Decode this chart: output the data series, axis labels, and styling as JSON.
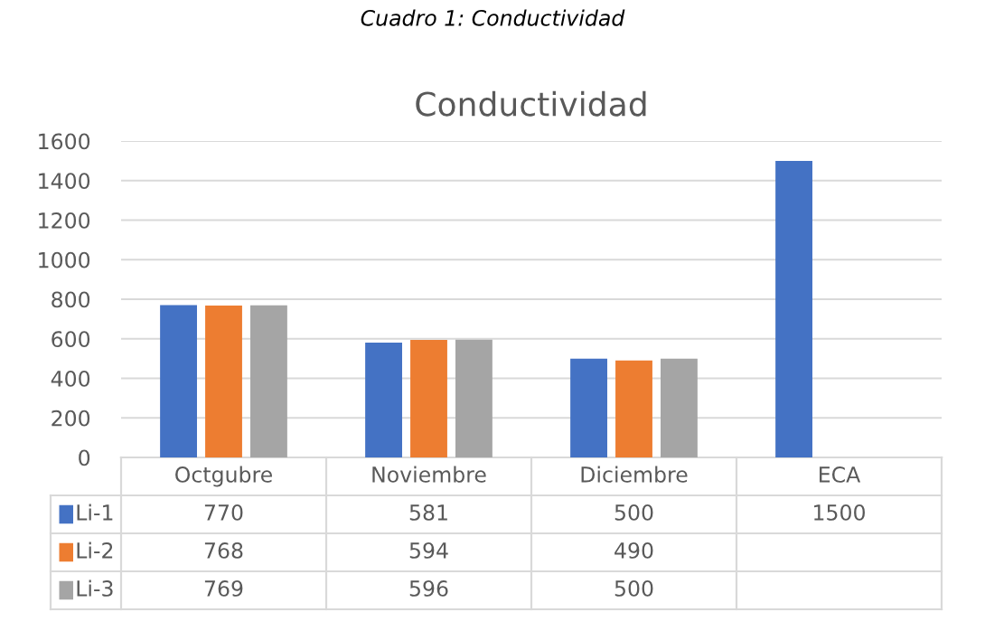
{
  "chart_data": {
    "type": "bar",
    "title": "Conductividad",
    "annotations": [
      "Cuadro 1: Conductividad"
    ],
    "categories": [
      "Octgubre",
      "Noviembre",
      "Diciembre",
      "ECA"
    ],
    "series": [
      {
        "name": "Li-1",
        "color": "#4472c4",
        "values": [
          770,
          581,
          500,
          1500
        ]
      },
      {
        "name": "Li-2",
        "color": "#ed7d31",
        "values": [
          768,
          594,
          490,
          null
        ]
      },
      {
        "name": "Li-3",
        "color": "#a5a5a5",
        "values": [
          769,
          596,
          500,
          null
        ]
      }
    ],
    "ylim": [
      0,
      1600
    ],
    "yticks": [
      0,
      200,
      400,
      600,
      800,
      1000,
      1200,
      1400,
      1600
    ],
    "grid": "y",
    "legend": "bottom",
    "data_labels": true
  }
}
